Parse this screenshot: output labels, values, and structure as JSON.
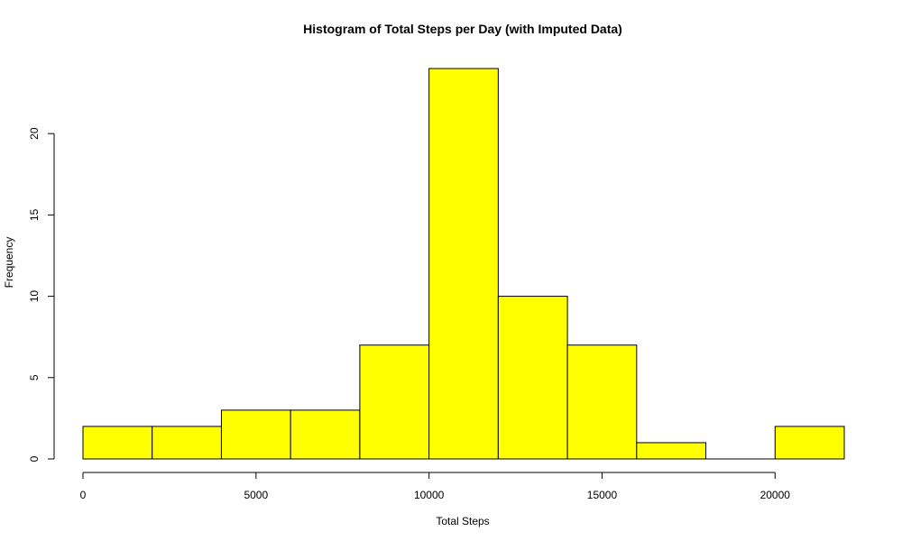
{
  "chart_data": {
    "type": "bar",
    "title": "Histogram of Total Steps per Day (with Imputed Data)",
    "xlabel": "Total Steps",
    "ylabel": "Frequency",
    "bin_edges": [
      0,
      2000,
      4000,
      6000,
      8000,
      10000,
      12000,
      14000,
      16000,
      18000,
      20000,
      22000
    ],
    "values": [
      2,
      2,
      3,
      3,
      7,
      24,
      10,
      7,
      1,
      0,
      2
    ],
    "xlim": [
      0,
      22000
    ],
    "ylim": [
      0,
      24
    ],
    "x_ticks": [
      0,
      5000,
      10000,
      15000,
      20000
    ],
    "y_ticks": [
      0,
      5,
      10,
      15,
      20
    ],
    "bar_color": "#FFFF00",
    "grid": false,
    "legend": "none"
  }
}
